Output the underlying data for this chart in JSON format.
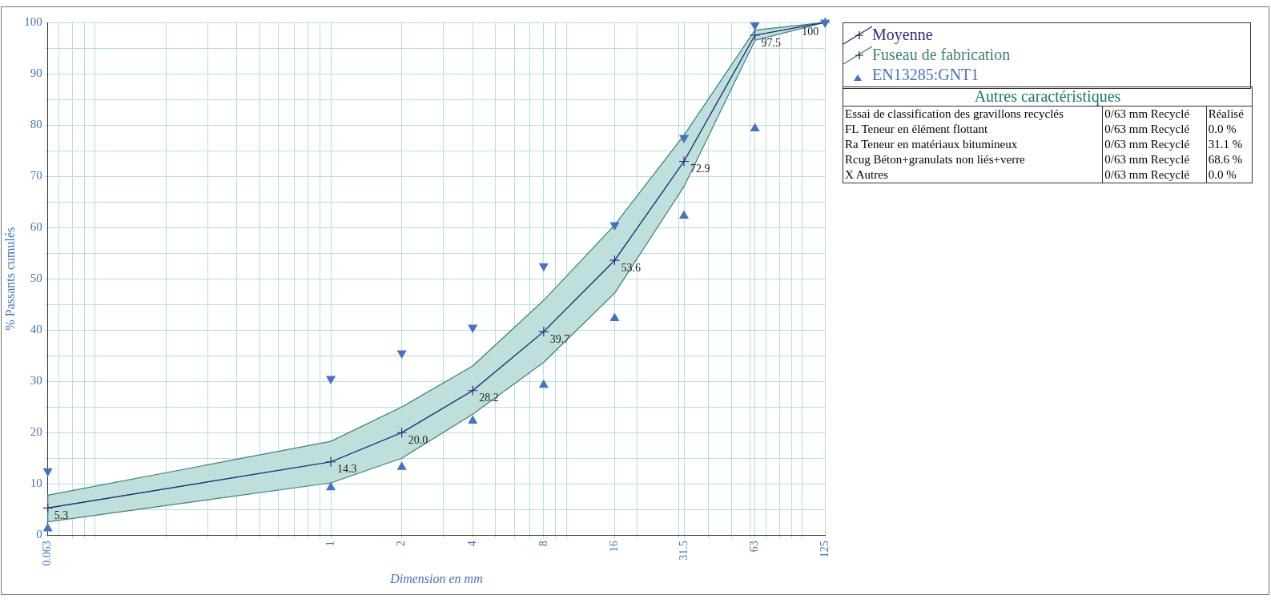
{
  "chart_data": [
    {
      "type": "line",
      "xlabel": "Dimension en mm",
      "ylabel": "% Passants cumulés",
      "x": [
        0.063,
        1,
        2,
        4,
        8,
        16,
        31.5,
        63,
        125
      ],
      "log": "x",
      "grid": true,
      "legend": "top right",
      "xlim": [
        0.063,
        125
      ],
      "ylim": [
        0,
        100
      ],
      "xticks": [
        0.063,
        {
          "value": 0.07,
          "label": null
        },
        {
          "value": 0.08,
          "label": null
        },
        {
          "value": 0.09,
          "label": null
        },
        {
          "value": 0.1,
          "label": null
        },
        {
          "value": 0.2,
          "label": null
        },
        {
          "value": 0.3,
          "label": null
        },
        {
          "value": 0.4,
          "label": null
        },
        {
          "value": 0.5,
          "label": null
        },
        {
          "value": 0.6,
          "label": null
        },
        {
          "value": 0.7,
          "label": null
        },
        {
          "value": 0.8,
          "label": null
        },
        {
          "value": 0.9,
          "label": null
        },
        1,
        2,
        {
          "value": 3,
          "label": null
        },
        4,
        {
          "value": 5,
          "label": null
        },
        {
          "value": 6,
          "label": null
        },
        {
          "value": 7,
          "label": null
        },
        8,
        {
          "value": 9,
          "label": null
        },
        {
          "value": 10,
          "label": null
        },
        16,
        {
          "value": 20,
          "label": null
        },
        {
          "value": 30,
          "label": null
        },
        31.5,
        {
          "value": 40,
          "label": null
        },
        {
          "value": 50,
          "label": null
        },
        {
          "value": 60,
          "label": null
        },
        63,
        {
          "value": 70,
          "label": null
        },
        {
          "value": 80,
          "label": null
        },
        {
          "value": 90,
          "label": null
        },
        {
          "value": 100,
          "label": null
        },
        125
      ],
      "yticks": [
        0,
        {
          "value": 5,
          "label": null
        },
        10,
        {
          "value": 15,
          "label": null
        },
        20,
        {
          "value": 25,
          "label": null
        },
        30,
        {
          "value": 35,
          "label": null
        },
        40,
        {
          "value": 45,
          "label": null
        },
        50,
        {
          "value": 55,
          "label": null
        },
        60,
        {
          "value": 65,
          "label": null
        },
        70,
        {
          "value": 75,
          "label": null
        },
        80,
        {
          "value": 85,
          "label": null
        },
        90,
        {
          "value": 95,
          "label": null
        },
        100
      ],
      "series": [
        {
          "name": "Moyenne",
          "type": "line",
          "color": "#2b2b80",
          "marker": "cross",
          "values": [
            5.3,
            14.3,
            20.0,
            28.2,
            39.7,
            53.6,
            72.9,
            97.5,
            100
          ],
          "value_labels": [
            "5.3",
            "14.3",
            "20.0",
            "28.2",
            "39.7",
            "53.6",
            "72.9",
            "97.5",
            "100"
          ]
        },
        {
          "name": "Fuseau de fabrication",
          "type": "line",
          "color": "#3d8078",
          "values": [
            5.3,
            14.3,
            20.0,
            28.2,
            39.7,
            53.6,
            72.9,
            97.5,
            100
          ],
          "lower": [
            2.6,
            10.2,
            15,
            23.6,
            33.7,
            47.2,
            68,
            96.5,
            100
          ],
          "upper": [
            7.8,
            18.3,
            25,
            33,
            45.8,
            60.5,
            78,
            98.5,
            100
          ]
        },
        {
          "name": "EN13285:GNT1",
          "type": "scatter",
          "color": "#4472c4",
          "marker": "triangle",
          "values": [
            1.3,
            9.3,
            13.3,
            22.3,
            29.3,
            42.3,
            62.3,
            79.3,
            null
          ]
        },
        {
          "type": "scatter",
          "color": "#4472c4",
          "marker": "triangle-down",
          "values": [
            12.5,
            30.5,
            35.5,
            40.5,
            52.5,
            60.5,
            77.5,
            99.5,
            100
          ]
        }
      ]
    },
    {
      "type": "other",
      "title": "Autres caractéristiques",
      "annotations": [
        "Essai de classification des gravillons recyclés",
        "0/63 mm Recyclé",
        "Réalisé",
        "FL Teneur en élément flottant",
        "0/63 mm Recyclé",
        "0.0 %",
        "Ra Teneur en matériaux bitumineux",
        "0/63 mm Recyclé",
        "31.1 %",
        "Rcug Béton+granulats non liés+verre",
        "0/63 mm Recyclé",
        "68.6 %",
        "X Autres",
        "0/63 mm Recyclé",
        "0.0 %"
      ]
    }
  ]
}
